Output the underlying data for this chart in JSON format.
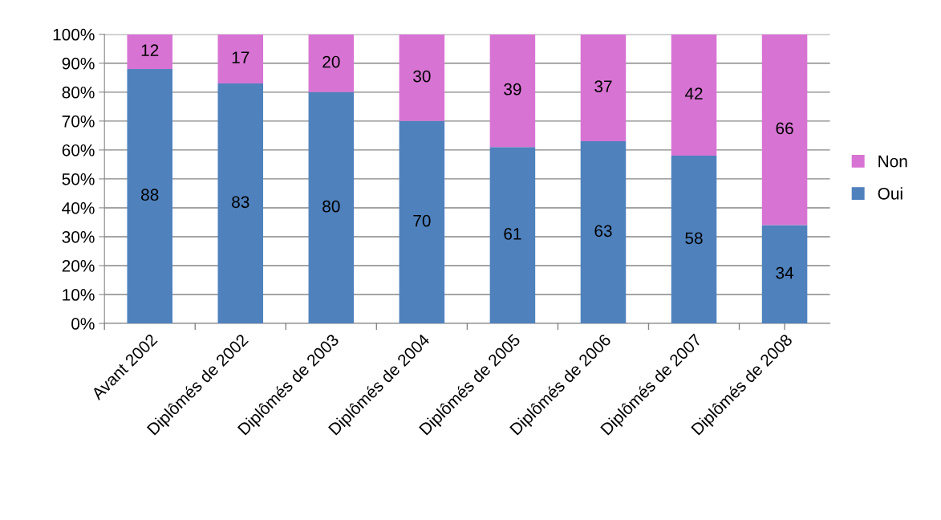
{
  "chart_data": {
    "type": "bar",
    "stacked": true,
    "categories": [
      "Avant 2002",
      "Diplômés de 2002",
      "Diplômés de 2003",
      "Diplômés de 2004",
      "Diplômés de 2005",
      "Diplômés de 2006",
      "Diplômés de 2007",
      "Diplômés de 2008"
    ],
    "series": [
      {
        "name": "Oui",
        "color": "#4f81bd",
        "values": [
          88,
          83,
          80,
          70,
          61,
          63,
          58,
          34
        ]
      },
      {
        "name": "Non",
        "color": "#d774d3",
        "values": [
          12,
          17,
          20,
          30,
          39,
          37,
          42,
          66
        ]
      }
    ],
    "ylim": [
      0,
      100
    ],
    "yticks": [
      {
        "value": 0,
        "label": "0%"
      },
      {
        "value": 10,
        "label": "10%"
      },
      {
        "value": 20,
        "label": "20%"
      },
      {
        "value": 30,
        "label": "30%"
      },
      {
        "value": 40,
        "label": "40%"
      },
      {
        "value": 50,
        "label": "50%"
      },
      {
        "value": 60,
        "label": "60%"
      },
      {
        "value": 70,
        "label": "70%"
      },
      {
        "value": 80,
        "label": "80%"
      },
      {
        "value": 90,
        "label": "90%"
      },
      {
        "value": 100,
        "label": "100%"
      }
    ],
    "grid": "y",
    "legend": "right",
    "data_labels": true
  }
}
